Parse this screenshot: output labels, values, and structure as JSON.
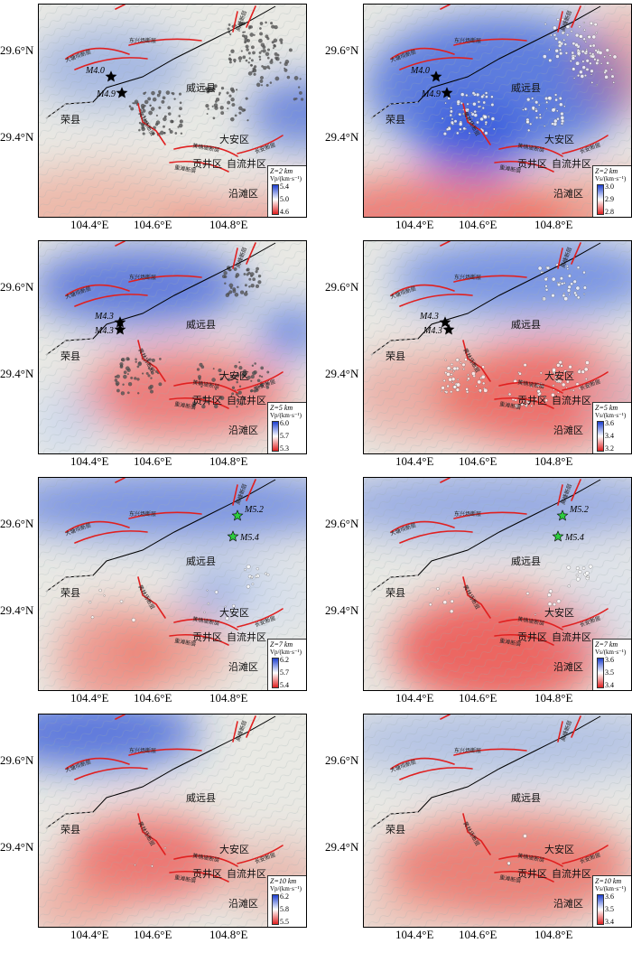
{
  "panels_meta": {
    "lat_labels": [
      "29.6°N",
      "29.4°N"
    ],
    "lon_labels": [
      "104.4°E",
      "104.6°E",
      "104.8°E"
    ]
  },
  "places": {
    "weiyuan": "威远县",
    "rongxian": "荣县",
    "daan": "大安区",
    "gongjing": "贡井区",
    "ziliujing": "自流井区",
    "yantan": "沿滩区"
  },
  "faults": {
    "dongxingchang": "东兴场断层",
    "datangba": "大塘坝断层",
    "maoshan": "高峰断层",
    "huangshuchang": "黄林场断层",
    "huanggangpo": "黄桷坡断层",
    "chongtan": "重滩断层",
    "changan": "长安断层"
  },
  "panels": [
    {
      "id": "p1",
      "depth": "Z=2 km",
      "unit": "Vp/(km·s⁻¹)",
      "ticks": [
        "5.4",
        "5.0",
        "4.6"
      ],
      "eq": [
        {
          "label": "M4.0"
        },
        {
          "label": "M4.9"
        }
      ]
    },
    {
      "id": "p2",
      "depth": "Z=2 km",
      "unit": "Vs/(km·s⁻¹)",
      "ticks": [
        "3.0",
        "2.9",
        "2.8"
      ],
      "eq": [
        {
          "label": "M4.0"
        },
        {
          "label": "M4.9"
        }
      ]
    },
    {
      "id": "p3",
      "depth": "Z=5 km",
      "unit": "Vp/(km·s⁻¹)",
      "ticks": [
        "6.0",
        "5.7",
        "5.3"
      ],
      "eq": [
        {
          "label": "M4.3"
        },
        {
          "label": "M4.3"
        }
      ]
    },
    {
      "id": "p4",
      "depth": "Z=5 km",
      "unit": "Vs/(km·s⁻¹)",
      "ticks": [
        "3.6",
        "3.4",
        "3.2"
      ],
      "eq": [
        {
          "label": "M4.3"
        },
        {
          "label": "M4.3"
        }
      ]
    },
    {
      "id": "p5",
      "depth": "Z=7 km",
      "unit": "Vp/(km·s⁻¹)",
      "ticks": [
        "6.2",
        "5.7",
        "5.4"
      ],
      "eq": [
        {
          "label": "M5.2"
        },
        {
          "label": "M5.4"
        }
      ]
    },
    {
      "id": "p6",
      "depth": "Z=7 km",
      "unit": "Vs/(km·s⁻¹)",
      "ticks": [
        "3.6",
        "3.5",
        "3.4"
      ],
      "eq": [
        {
          "label": "M5.2"
        },
        {
          "label": "M5.4"
        }
      ]
    },
    {
      "id": "p7",
      "depth": "Z=10 km",
      "unit": "Vp/(km·s⁻¹)",
      "ticks": [
        "6.2",
        "5.8",
        "5.5"
      ],
      "eq": []
    },
    {
      "id": "p8",
      "depth": "Z=10 km",
      "unit": "Vs/(km·s⁻¹)",
      "ticks": [
        "3.6",
        "3.5",
        "3.4"
      ],
      "eq": []
    }
  ]
}
